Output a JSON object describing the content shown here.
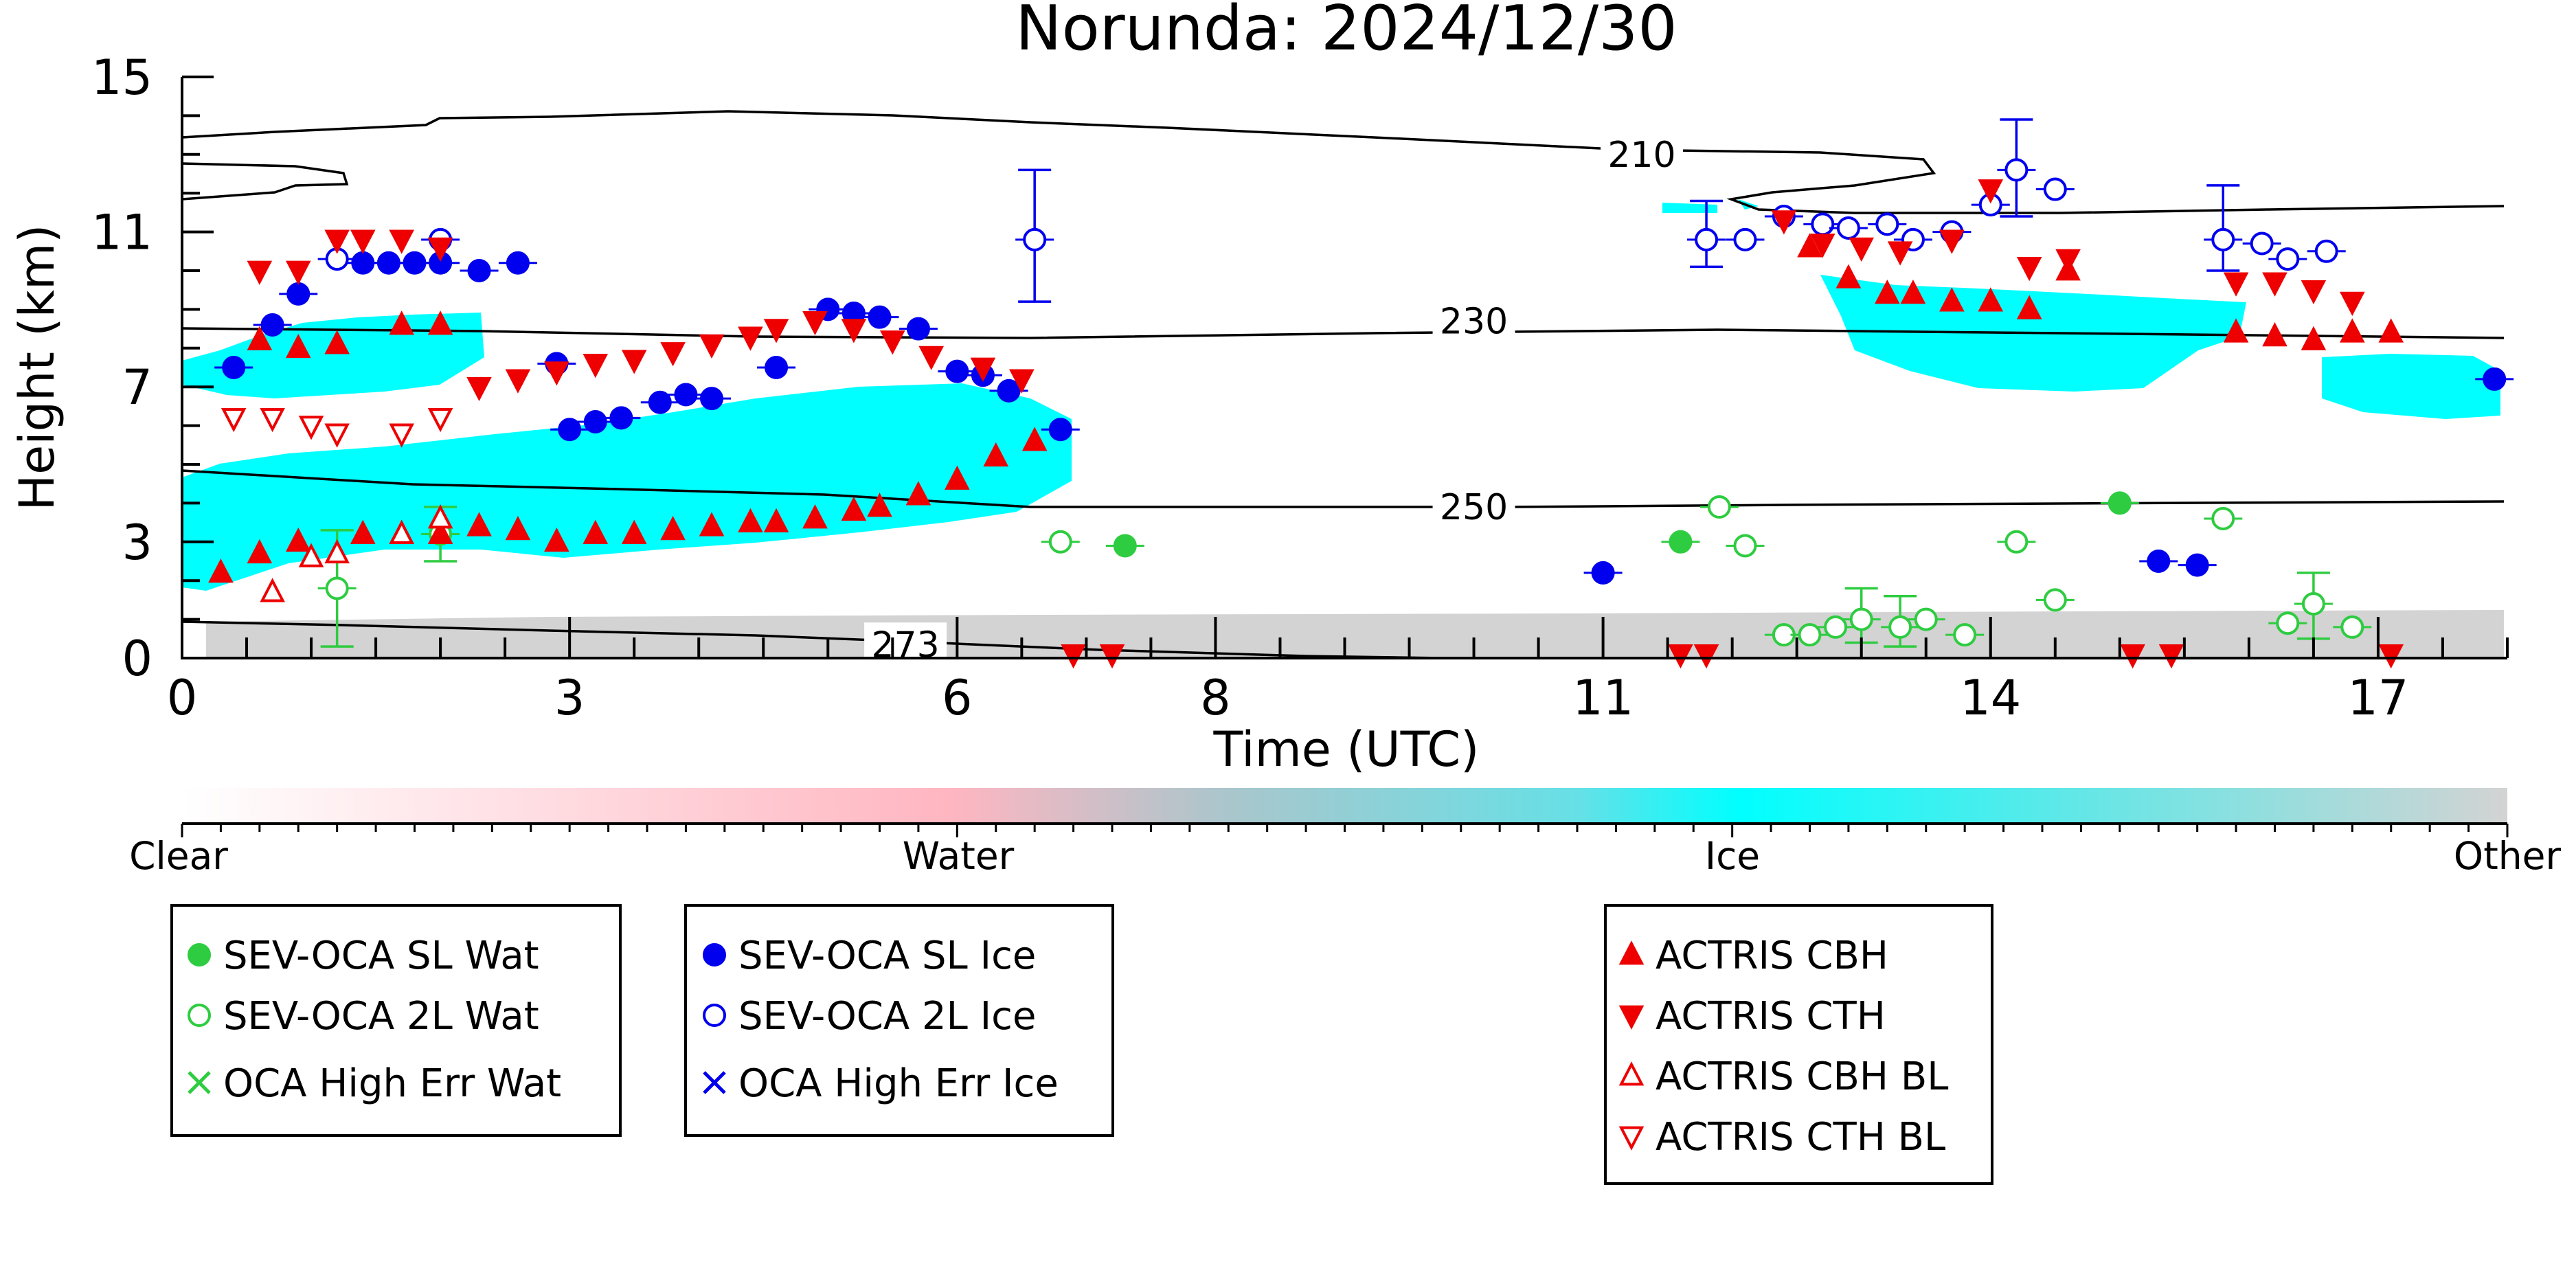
{
  "chart_data": {
    "type": "scatter",
    "title": "Norunda: 2024/12/30",
    "xlabel": "Time (UTC)",
    "ylabel": "Height (km)",
    "xlim": [
      0,
      18
    ],
    "ylim": [
      0,
      15
    ],
    "x_ticks": [
      0,
      3,
      6,
      8,
      11,
      14,
      17
    ],
    "x_tick_labels": [
      "0",
      "3",
      "6",
      "8",
      "11",
      "14",
      "17"
    ],
    "y_ticks": [
      0,
      3,
      7,
      11,
      15
    ],
    "y_tick_labels": [
      "0",
      "3",
      "7",
      "11",
      "15"
    ],
    "contours": [
      {
        "label": "210",
        "label_x": 11.3,
        "label_y": 13.0
      },
      {
        "label": "230",
        "label_x": 10.0,
        "label_y": 8.7
      },
      {
        "label": "250",
        "label_x": 10.0,
        "label_y": 3.9
      },
      {
        "label": "273",
        "label_x": 5.6,
        "label_y": 0.35
      }
    ],
    "colorbar": {
      "labels": [
        "Clear",
        "Water",
        "Ice",
        "Other"
      ],
      "colors": [
        "#ffffff",
        "#ffb6c1",
        "#00ffff",
        "#d3d3d3"
      ]
    },
    "colors": {
      "water": "#2ecc40",
      "ice": "#0000ee",
      "actris": "#ee0000",
      "cloud_ice": "#00ffff",
      "cloud_water": "#ffb6c1",
      "other": "#d3d3d3"
    },
    "series": [
      {
        "name": "SEV-OCA SL Wat",
        "marker": "filled-circle",
        "color": "#2ecc40",
        "points": [
          [
            7.3,
            2.9
          ],
          [
            11.6,
            3.0
          ],
          [
            15.0,
            4.0
          ]
        ]
      },
      {
        "name": "SEV-OCA 2L Wat",
        "marker": "open-circle",
        "color": "#2ecc40",
        "points": [
          [
            1.2,
            1.8
          ],
          [
            2.0,
            3.2
          ],
          [
            6.8,
            3.0
          ],
          [
            11.9,
            3.9
          ],
          [
            12.1,
            2.9
          ],
          [
            12.4,
            0.6
          ],
          [
            12.6,
            0.6
          ],
          [
            12.8,
            0.8
          ],
          [
            13.0,
            1.0
          ],
          [
            13.3,
            0.8
          ],
          [
            13.5,
            1.0
          ],
          [
            13.8,
            0.6
          ],
          [
            14.2,
            3.0
          ],
          [
            14.5,
            1.5
          ],
          [
            15.8,
            3.6
          ],
          [
            16.3,
            0.9
          ],
          [
            16.5,
            1.4
          ],
          [
            16.8,
            0.8
          ]
        ],
        "errors": [
          [
            1.2,
            0.3,
            3.3
          ],
          [
            2.0,
            2.5,
            3.9
          ],
          [
            13.0,
            0.4,
            1.8
          ],
          [
            13.3,
            0.3,
            1.6
          ],
          [
            16.5,
            0.5,
            2.2
          ]
        ]
      },
      {
        "name": "OCA High Err Wat",
        "marker": "cross",
        "color": "#2ecc40",
        "points": []
      },
      {
        "name": "SEV-OCA SL Ice",
        "marker": "filled-circle",
        "color": "#0000ee",
        "points": [
          [
            0.4,
            7.5
          ],
          [
            0.7,
            8.6
          ],
          [
            0.9,
            9.4
          ],
          [
            1.4,
            10.2
          ],
          [
            1.6,
            10.2
          ],
          [
            1.8,
            10.2
          ],
          [
            2.0,
            10.2
          ],
          [
            2.3,
            10.0
          ],
          [
            2.6,
            10.2
          ],
          [
            2.9,
            7.6
          ],
          [
            3.0,
            5.9
          ],
          [
            3.2,
            6.1
          ],
          [
            3.4,
            6.2
          ],
          [
            3.7,
            6.6
          ],
          [
            3.9,
            6.8
          ],
          [
            4.1,
            6.7
          ],
          [
            4.6,
            7.5
          ],
          [
            5.0,
            9.0
          ],
          [
            5.2,
            8.9
          ],
          [
            5.4,
            8.8
          ],
          [
            5.7,
            8.5
          ],
          [
            6.0,
            7.4
          ],
          [
            6.2,
            7.3
          ],
          [
            6.4,
            6.9
          ],
          [
            6.8,
            5.9
          ],
          [
            11.0,
            2.2
          ],
          [
            15.3,
            2.5
          ],
          [
            15.6,
            2.4
          ],
          [
            17.9,
            7.2
          ]
        ]
      },
      {
        "name": "SEV-OCA 2L Ice",
        "marker": "open-circle",
        "color": "#0000ee",
        "points": [
          [
            1.2,
            10.3
          ],
          [
            2.0,
            10.8
          ],
          [
            6.6,
            10.8
          ],
          [
            11.8,
            10.8
          ],
          [
            12.1,
            10.8
          ],
          [
            12.4,
            11.4
          ],
          [
            12.7,
            11.2
          ],
          [
            12.9,
            11.1
          ],
          [
            13.2,
            11.2
          ],
          [
            13.4,
            10.8
          ],
          [
            13.7,
            11.0
          ],
          [
            14.0,
            11.7
          ],
          [
            14.2,
            12.6
          ],
          [
            14.5,
            12.1
          ],
          [
            15.8,
            10.8
          ],
          [
            16.1,
            10.7
          ],
          [
            16.3,
            10.3
          ],
          [
            16.6,
            10.5
          ]
        ],
        "errors": [
          [
            6.6,
            9.2,
            12.6
          ],
          [
            11.8,
            10.1,
            11.8
          ],
          [
            14.2,
            11.4,
            13.9
          ],
          [
            15.8,
            10.0,
            12.2
          ]
        ]
      },
      {
        "name": "OCA High Err Ice",
        "marker": "cross",
        "color": "#0000ee",
        "points": []
      },
      {
        "name": "ACTRIS CBH",
        "marker": "filled-triangle-up",
        "color": "#ee0000",
        "points": [
          [
            0.3,
            2.2
          ],
          [
            0.6,
            2.7
          ],
          [
            0.9,
            3.0
          ],
          [
            1.4,
            3.2
          ],
          [
            1.7,
            3.2
          ],
          [
            2.0,
            3.2
          ],
          [
            2.3,
            3.4
          ],
          [
            2.6,
            3.3
          ],
          [
            2.9,
            3.0
          ],
          [
            3.2,
            3.2
          ],
          [
            3.5,
            3.2
          ],
          [
            3.8,
            3.3
          ],
          [
            4.1,
            3.4
          ],
          [
            4.4,
            3.5
          ],
          [
            4.6,
            3.5
          ],
          [
            4.9,
            3.6
          ],
          [
            5.2,
            3.8
          ],
          [
            5.4,
            3.9
          ],
          [
            5.7,
            4.2
          ],
          [
            6.0,
            4.6
          ],
          [
            6.3,
            5.2
          ],
          [
            6.6,
            5.6
          ],
          [
            0.6,
            8.2
          ],
          [
            0.9,
            8.0
          ],
          [
            1.2,
            8.1
          ],
          [
            1.7,
            8.6
          ],
          [
            2.0,
            8.6
          ],
          [
            12.6,
            10.6
          ],
          [
            12.9,
            9.8
          ],
          [
            13.2,
            9.4
          ],
          [
            13.4,
            9.4
          ],
          [
            13.7,
            9.2
          ],
          [
            14.0,
            9.2
          ],
          [
            14.3,
            9.0
          ],
          [
            14.6,
            10.0
          ],
          [
            15.9,
            8.4
          ],
          [
            16.2,
            8.3
          ],
          [
            16.5,
            8.2
          ],
          [
            16.8,
            8.4
          ],
          [
            17.1,
            8.4
          ]
        ]
      },
      {
        "name": "ACTRIS CTH",
        "marker": "filled-triangle-down",
        "color": "#ee0000",
        "points": [
          [
            0.6,
            10.0
          ],
          [
            0.9,
            10.0
          ],
          [
            1.2,
            10.8
          ],
          [
            1.4,
            10.8
          ],
          [
            1.7,
            10.8
          ],
          [
            2.0,
            10.6
          ],
          [
            2.3,
            7.0
          ],
          [
            2.6,
            7.2
          ],
          [
            2.9,
            7.4
          ],
          [
            3.2,
            7.6
          ],
          [
            3.5,
            7.7
          ],
          [
            3.8,
            7.9
          ],
          [
            4.1,
            8.1
          ],
          [
            4.4,
            8.3
          ],
          [
            4.6,
            8.5
          ],
          [
            4.9,
            8.7
          ],
          [
            5.2,
            8.5
          ],
          [
            5.5,
            8.2
          ],
          [
            5.8,
            7.8
          ],
          [
            6.2,
            7.5
          ],
          [
            6.5,
            7.2
          ],
          [
            6.9,
            0.1
          ],
          [
            7.2,
            0.1
          ],
          [
            11.6,
            0.1
          ],
          [
            11.8,
            0.1
          ],
          [
            12.4,
            11.3
          ],
          [
            12.7,
            10.7
          ],
          [
            13.0,
            10.6
          ],
          [
            13.3,
            10.5
          ],
          [
            13.7,
            10.8
          ],
          [
            14.0,
            12.1
          ],
          [
            14.3,
            10.1
          ],
          [
            14.6,
            10.3
          ],
          [
            15.1,
            0.1
          ],
          [
            15.4,
            0.1
          ],
          [
            15.9,
            9.7
          ],
          [
            16.2,
            9.7
          ],
          [
            16.5,
            9.5
          ],
          [
            16.8,
            9.2
          ],
          [
            17.1,
            0.1
          ]
        ]
      },
      {
        "name": "ACTRIS CBH BL",
        "marker": "open-triangle-up",
        "color": "#ee0000",
        "points": [
          [
            0.7,
            1.7
          ],
          [
            1.0,
            2.6
          ],
          [
            1.2,
            2.7
          ],
          [
            1.7,
            3.2
          ],
          [
            2.0,
            3.6
          ]
        ]
      },
      {
        "name": "ACTRIS CTH BL",
        "marker": "open-triangle-down",
        "color": "#ee0000",
        "points": [
          [
            0.4,
            6.2
          ],
          [
            0.7,
            6.2
          ],
          [
            1.0,
            6.0
          ],
          [
            1.2,
            5.8
          ],
          [
            1.7,
            5.8
          ],
          [
            2.0,
            6.2
          ]
        ]
      }
    ],
    "legend_groups": [
      [
        "SEV-OCA SL Wat",
        "SEV-OCA 2L Wat",
        "OCA High Err Wat"
      ],
      [
        "SEV-OCA SL Ice",
        "SEV-OCA 2L Ice",
        "OCA High Err Ice"
      ],
      [
        "ACTRIS CBH",
        "ACTRIS CTH",
        "ACTRIS CBH BL",
        "ACTRIS CTH BL"
      ]
    ]
  }
}
